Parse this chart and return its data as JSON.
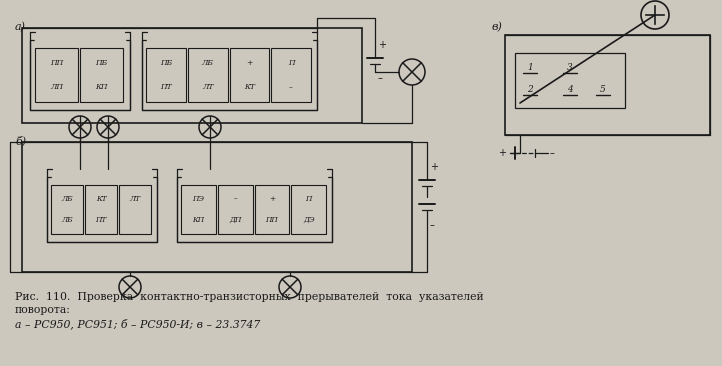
{
  "bg_color": "#ccc8be",
  "line_color": "#1a1a1a",
  "text_color": "#1a1a1a",
  "caption_line1": "Рис.  110.  Проверка  контактно-транзисторных  прерывателей  тока  указателей",
  "caption_line2": "поворота:",
  "caption_line3": "а – РС950, РС951; б – РС950-И; в – 23.3747",
  "label_a": "а)",
  "label_b": "б̆)",
  "label_v": "в)"
}
